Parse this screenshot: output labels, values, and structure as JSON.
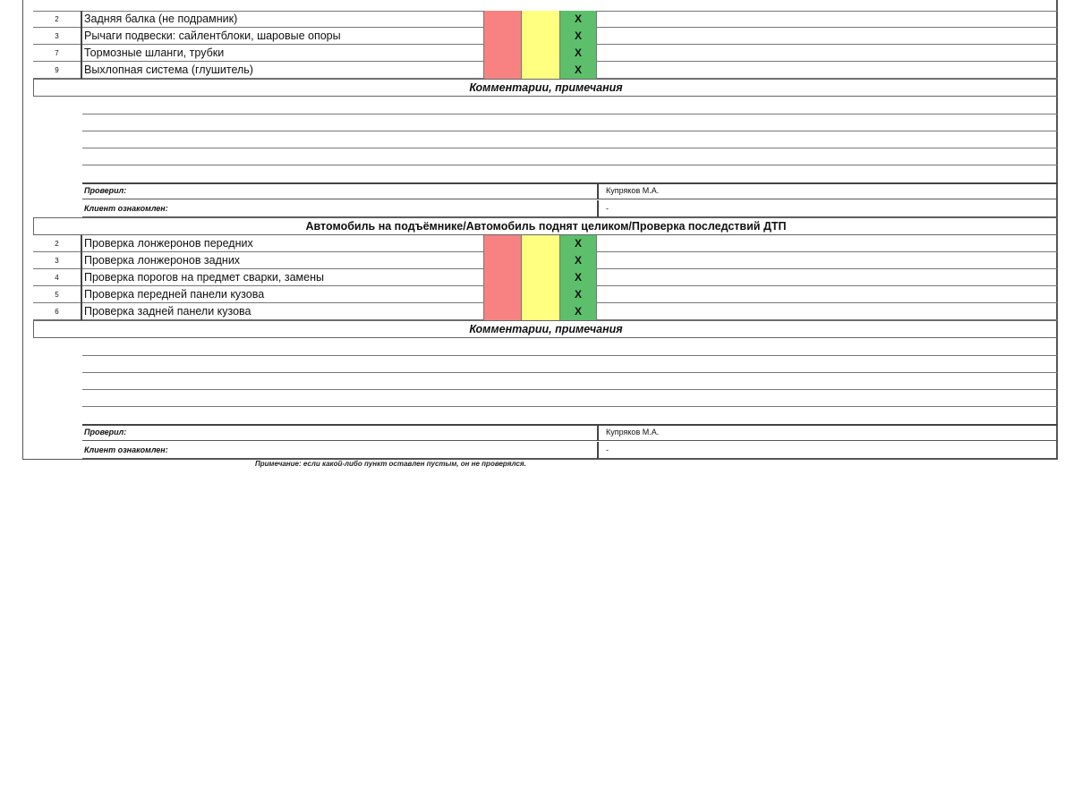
{
  "colors": {
    "red": "#f88282",
    "yellow": "#ffff80",
    "green": "#5dbf6b"
  },
  "section1": {
    "items": [
      {
        "num": "2",
        "desc": "Задняя балка (не подрамник)",
        "mark": "X"
      },
      {
        "num": "3",
        "desc": "Рычаги подвески: сайлентблоки, шаровые опоры",
        "mark": "X"
      },
      {
        "num": "7",
        "desc": "Тормозные шланги, трубки",
        "mark": "X"
      },
      {
        "num": "9",
        "desc": "Выхлопная система (глушитель)",
        "mark": "X"
      }
    ],
    "comments_title": "Комментарии, примечания",
    "checked_label": "Проверил:",
    "checked_value": "Купряков М.А.",
    "client_label": "Клиент ознакомлен:",
    "client_value": "-"
  },
  "section2": {
    "title": "Автомобиль на подъёмнике/Автомобиль поднят целиком/Проверка последствий ДТП",
    "items": [
      {
        "num": "2",
        "desc": "Проверка лонжеронов передних",
        "mark": "X"
      },
      {
        "num": "3",
        "desc": "Проверка лонжеронов задних",
        "mark": "X"
      },
      {
        "num": "4",
        "desc": "Проверка порогов на предмет сварки, замены",
        "mark": "X"
      },
      {
        "num": "5",
        "desc": "Проверка передней панели кузова",
        "mark": "X"
      },
      {
        "num": "6",
        "desc": "Проверка задней панели кузова",
        "mark": "X"
      }
    ],
    "comments_title": "Комментарии, примечания",
    "checked_label": "Проверил:",
    "checked_value": "Купряков М.А.",
    "client_label": "Клиент ознакомлен:",
    "client_value": "-"
  },
  "footer_note": "Примечание: если какой-либо пункт оставлен пустым, он не проверялся."
}
